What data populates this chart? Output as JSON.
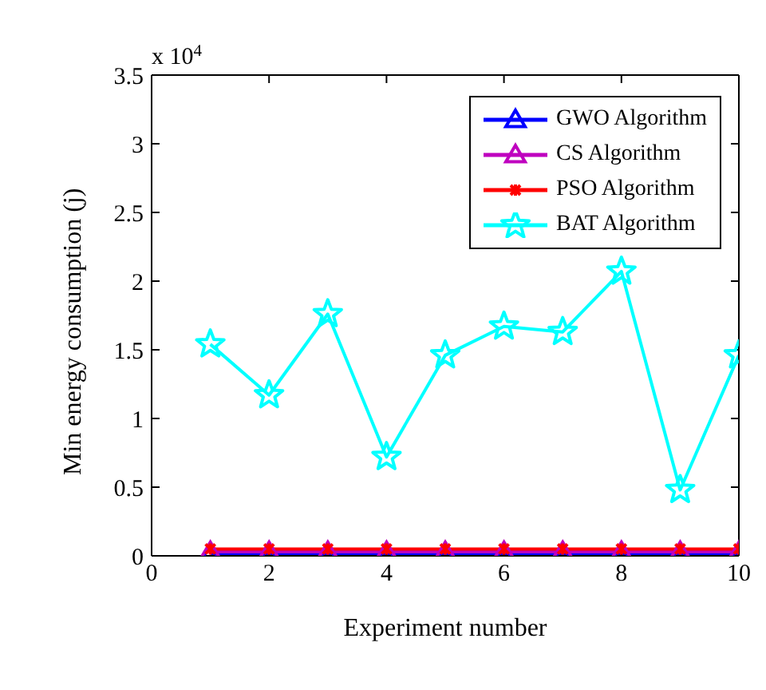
{
  "chart_data": {
    "type": "line",
    "xlabel": "Experiment number",
    "ylabel": "Min energy consumption (j)",
    "annotations": [
      "x 10$^{4}$"
    ],
    "x": [
      1,
      2,
      3,
      4,
      5,
      6,
      7,
      8,
      9,
      10
    ],
    "series": [
      {
        "name": "GWO Algorithm",
        "color": "#0000ff",
        "marker": "triangle",
        "values": [
          0.01,
          0.01,
          0.01,
          0.01,
          0.01,
          0.01,
          0.01,
          0.01,
          0.01,
          0.01
        ]
      },
      {
        "name": "CS Algorithm",
        "color": "#bf00bf",
        "marker": "triangle",
        "values": [
          0.03,
          0.03,
          0.03,
          0.03,
          0.03,
          0.03,
          0.03,
          0.03,
          0.03,
          0.03
        ]
      },
      {
        "name": "PSO Algorithm",
        "color": "#ff0000",
        "marker": "cross",
        "values": [
          0.05,
          0.05,
          0.05,
          0.05,
          0.05,
          0.05,
          0.05,
          0.05,
          0.05,
          0.05
        ]
      },
      {
        "name": "BAT Algorithm",
        "color": "#00ffff",
        "marker": "star",
        "values": [
          1.54,
          1.17,
          1.76,
          0.72,
          1.46,
          1.67,
          1.63,
          2.07,
          0.48,
          1.46
        ]
      }
    ],
    "xlim": [
      0,
      10
    ],
    "xticks": [
      0,
      2,
      4,
      6,
      8,
      10
    ],
    "ylim": [
      0,
      3.5
    ],
    "yticks": [
      0,
      0.5,
      1,
      1.5,
      2,
      2.5,
      3,
      3.5
    ],
    "grid": false,
    "legend": "top right",
    "line_style": "solid"
  }
}
